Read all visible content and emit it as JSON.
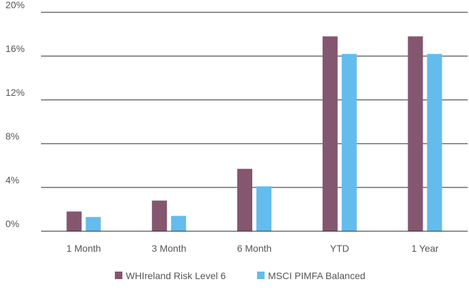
{
  "chart_data": {
    "type": "bar",
    "title": "",
    "xlabel": "",
    "ylabel": "",
    "categories": [
      "1 Month",
      "3 Month",
      "6 Month",
      "YTD",
      "1 Year"
    ],
    "series": [
      {
        "name": "WHIreland Risk Level 6",
        "values": [
          1.8,
          2.8,
          5.7,
          17.8,
          17.8
        ]
      },
      {
        "name": "MSCI PIMFA Balanced",
        "values": [
          1.3,
          1.4,
          4.1,
          16.2,
          16.2
        ]
      }
    ],
    "ylim": [
      0,
      20
    ],
    "yticks": [
      0,
      4,
      8,
      12,
      16,
      20
    ],
    "ytick_suffix": "%",
    "grid": true,
    "legend_position": "bottom-center"
  },
  "colors": {
    "series": [
      "#85566f",
      "#64bcec"
    ],
    "grid": "#222222",
    "text": "#555555"
  }
}
